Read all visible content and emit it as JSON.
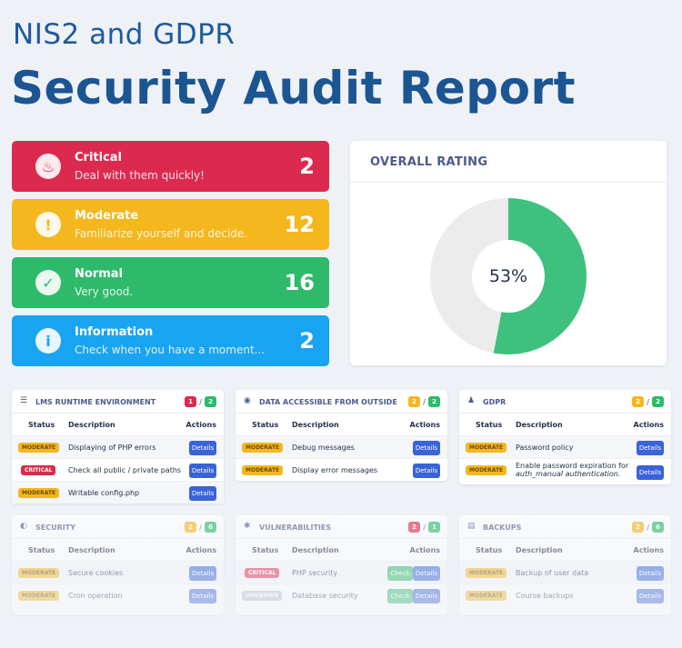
{
  "header": {
    "subtitle": "NIS2 and GDPR",
    "title": "Security Audit Report"
  },
  "summary": [
    {
      "title": "Critical",
      "desc": "Deal with them quickly!",
      "count": "2",
      "color": "#dc2a4f",
      "icon": "fire-icon"
    },
    {
      "title": "Moderate",
      "desc": "Familiarize yourself and decide.",
      "count": "12",
      "color": "#f5b71e",
      "icon": "warning-icon"
    },
    {
      "title": "Normal",
      "desc": "Very good.",
      "count": "16",
      "color": "#2eba6a",
      "icon": "check-icon"
    },
    {
      "title": "Information",
      "desc": "Check when you have a moment...",
      "count": "2",
      "color": "#18a4f0",
      "icon": "info-icon"
    }
  ],
  "rating": {
    "title": "OVERALL RATING",
    "value_label": "53%",
    "value": 53,
    "color_good": "#3ec17e",
    "color_rest": "#ececec"
  },
  "columns": {
    "status": "Status",
    "description": "Description",
    "actions": "Actions"
  },
  "panels": [
    {
      "title": "LMS RUNTIME ENVIRONMENT",
      "icon": "server-icon",
      "c1": "1",
      "c2": "2",
      "c1_color": "red",
      "rows": [
        {
          "status": "MODERATE",
          "type": "mod",
          "desc": "Displaying of PHP errors",
          "btn": "Details"
        },
        {
          "status": "CRITICAL",
          "type": "crit",
          "desc": "Check all public / private paths",
          "btn": "Details"
        },
        {
          "status": "MODERATE",
          "type": "mod",
          "desc": "Writable config.php",
          "btn": "Details"
        }
      ]
    },
    {
      "title": "DATA ACCESSIBLE FROM OUTSIDE",
      "icon": "eye-icon",
      "c1": "2",
      "c2": "2",
      "c1_color": "yel",
      "rows": [
        {
          "status": "MODERATE",
          "type": "mod",
          "desc": "Debug messages",
          "btn": "Details"
        },
        {
          "status": "MODERATE",
          "type": "mod",
          "desc": "Display error messages",
          "btn": "Details"
        }
      ]
    },
    {
      "title": "GDPR",
      "icon": "users-icon",
      "c1": "2",
      "c2": "2",
      "c1_color": "yel",
      "rows": [
        {
          "status": "MODERATE",
          "type": "mod",
          "desc": "Password policy",
          "btn": "Details"
        },
        {
          "status": "MODERATE",
          "type": "mod",
          "desc": "Enable password expiration for",
          "desc2": "auth_manual authentication.",
          "btn": "Details"
        }
      ]
    },
    {
      "title": "SECURITY",
      "icon": "shield-icon",
      "c1": "2",
      "c2": "6",
      "c1_color": "yel",
      "rows": [
        {
          "status": "MODERATE",
          "type": "mod",
          "desc": "Secure cookies",
          "btn": "Details"
        },
        {
          "status": "MODERATE",
          "type": "mod",
          "desc": "Cron operation",
          "btn": "Details"
        }
      ]
    },
    {
      "title": "VULNERABILITIES",
      "icon": "bug-icon",
      "c1": "2",
      "c2": "1",
      "c1_color": "red",
      "rows": [
        {
          "status": "CRITICAL",
          "type": "crit",
          "desc": "PHP security",
          "btn": "Details",
          "check": "Check"
        },
        {
          "status": "UNKNOWN",
          "type": "unk",
          "desc": "Database security",
          "btn": "Details",
          "check": "Check"
        }
      ]
    },
    {
      "title": "BACKUPS",
      "icon": "archive-icon",
      "c1": "2",
      "c2": "6",
      "c1_color": "yel",
      "rows": [
        {
          "status": "MODERATE",
          "type": "mod",
          "desc": "Backup of user data",
          "btn": "Details"
        },
        {
          "status": "MODERATE",
          "type": "mod",
          "desc": "Course backups",
          "btn": "Details"
        }
      ]
    }
  ]
}
